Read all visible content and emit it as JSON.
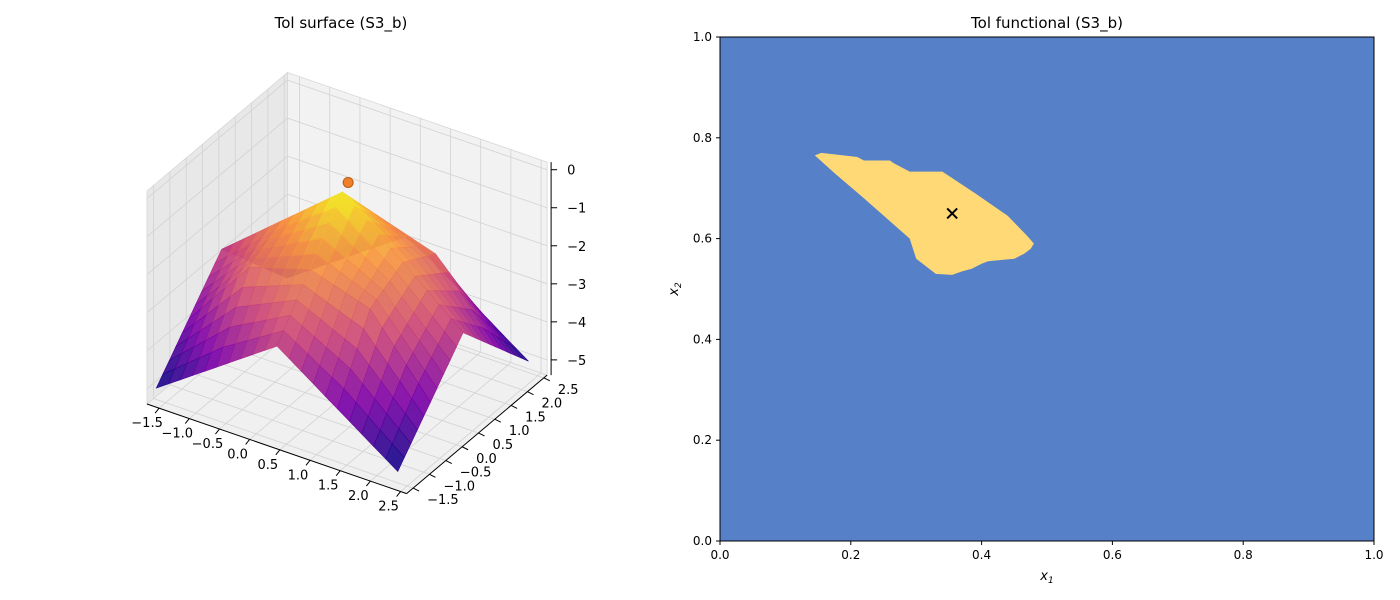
{
  "chart_data": [
    {
      "type": "surface3d",
      "title": "Tol surface (S3_b)",
      "colormap": "plasma",
      "x_ticks": [
        "−1.5",
        "−1.0",
        "−0.5",
        "0.0",
        "0.5",
        "1.0",
        "1.5",
        "2.0",
        "2.5"
      ],
      "y_ticks": [
        "−1.5",
        "−1.0",
        "−0.5",
        "0.0",
        "0.5",
        "1.0",
        "1.5",
        "2.0",
        "2.5"
      ],
      "z_ticks": [
        "0",
        "−1",
        "−2",
        "−3",
        "−4",
        "−5"
      ],
      "xlim": [
        -1.7,
        2.6
      ],
      "ylim": [
        -1.7,
        2.6
      ],
      "zlim": [
        -5.4,
        0.2
      ],
      "surface": {
        "grid": [
          -1.6,
          -0.6,
          0.4,
          1.4,
          2.4
        ],
        "z": [
          [
            -5.0,
            -3.9,
            -2.8,
            -3.9,
            -5.0
          ],
          [
            -3.9,
            -2.0,
            -1.5,
            -2.0,
            -3.9
          ],
          [
            -2.8,
            -1.5,
            -0.2,
            -1.5,
            -2.8
          ],
          [
            -3.9,
            -2.0,
            -1.5,
            -2.0,
            -3.9
          ],
          [
            -5.0,
            -3.9,
            -2.8,
            -3.9,
            -5.0
          ]
        ]
      },
      "max_marker": {
        "x": 0.36,
        "y": 0.65,
        "z": -0.15
      }
    },
    {
      "type": "contourf",
      "title": "Tol functional (S3_b)",
      "xlabel": "x",
      "xlabel_sub": "1",
      "ylabel": "x",
      "ylabel_sub": "2",
      "xlim": [
        0,
        1
      ],
      "ylim": [
        0,
        1
      ],
      "x_ticks": [
        "0.0",
        "0.2",
        "0.4",
        "0.6",
        "0.8",
        "1.0"
      ],
      "y_ticks": [
        "0.0",
        "0.2",
        "0.4",
        "0.6",
        "0.8",
        "1.0"
      ],
      "colors": {
        "background": "#5680c8",
        "region": "#ffd975"
      },
      "region_polygon": [
        [
          0.145,
          0.765
        ],
        [
          0.155,
          0.77
        ],
        [
          0.21,
          0.762
        ],
        [
          0.22,
          0.755
        ],
        [
          0.26,
          0.755
        ],
        [
          0.265,
          0.75
        ],
        [
          0.29,
          0.733
        ],
        [
          0.34,
          0.733
        ],
        [
          0.39,
          0.69
        ],
        [
          0.44,
          0.645
        ],
        [
          0.47,
          0.605
        ],
        [
          0.48,
          0.59
        ],
        [
          0.475,
          0.58
        ],
        [
          0.465,
          0.57
        ],
        [
          0.45,
          0.56
        ],
        [
          0.41,
          0.555
        ],
        [
          0.4,
          0.55
        ],
        [
          0.385,
          0.54
        ],
        [
          0.37,
          0.535
        ],
        [
          0.355,
          0.528
        ],
        [
          0.33,
          0.53
        ],
        [
          0.3,
          0.56
        ],
        [
          0.29,
          0.6
        ],
        [
          0.22,
          0.68
        ],
        [
          0.175,
          0.73
        ]
      ],
      "marker": {
        "x": 0.355,
        "y": 0.65,
        "symbol": "x"
      }
    }
  ]
}
